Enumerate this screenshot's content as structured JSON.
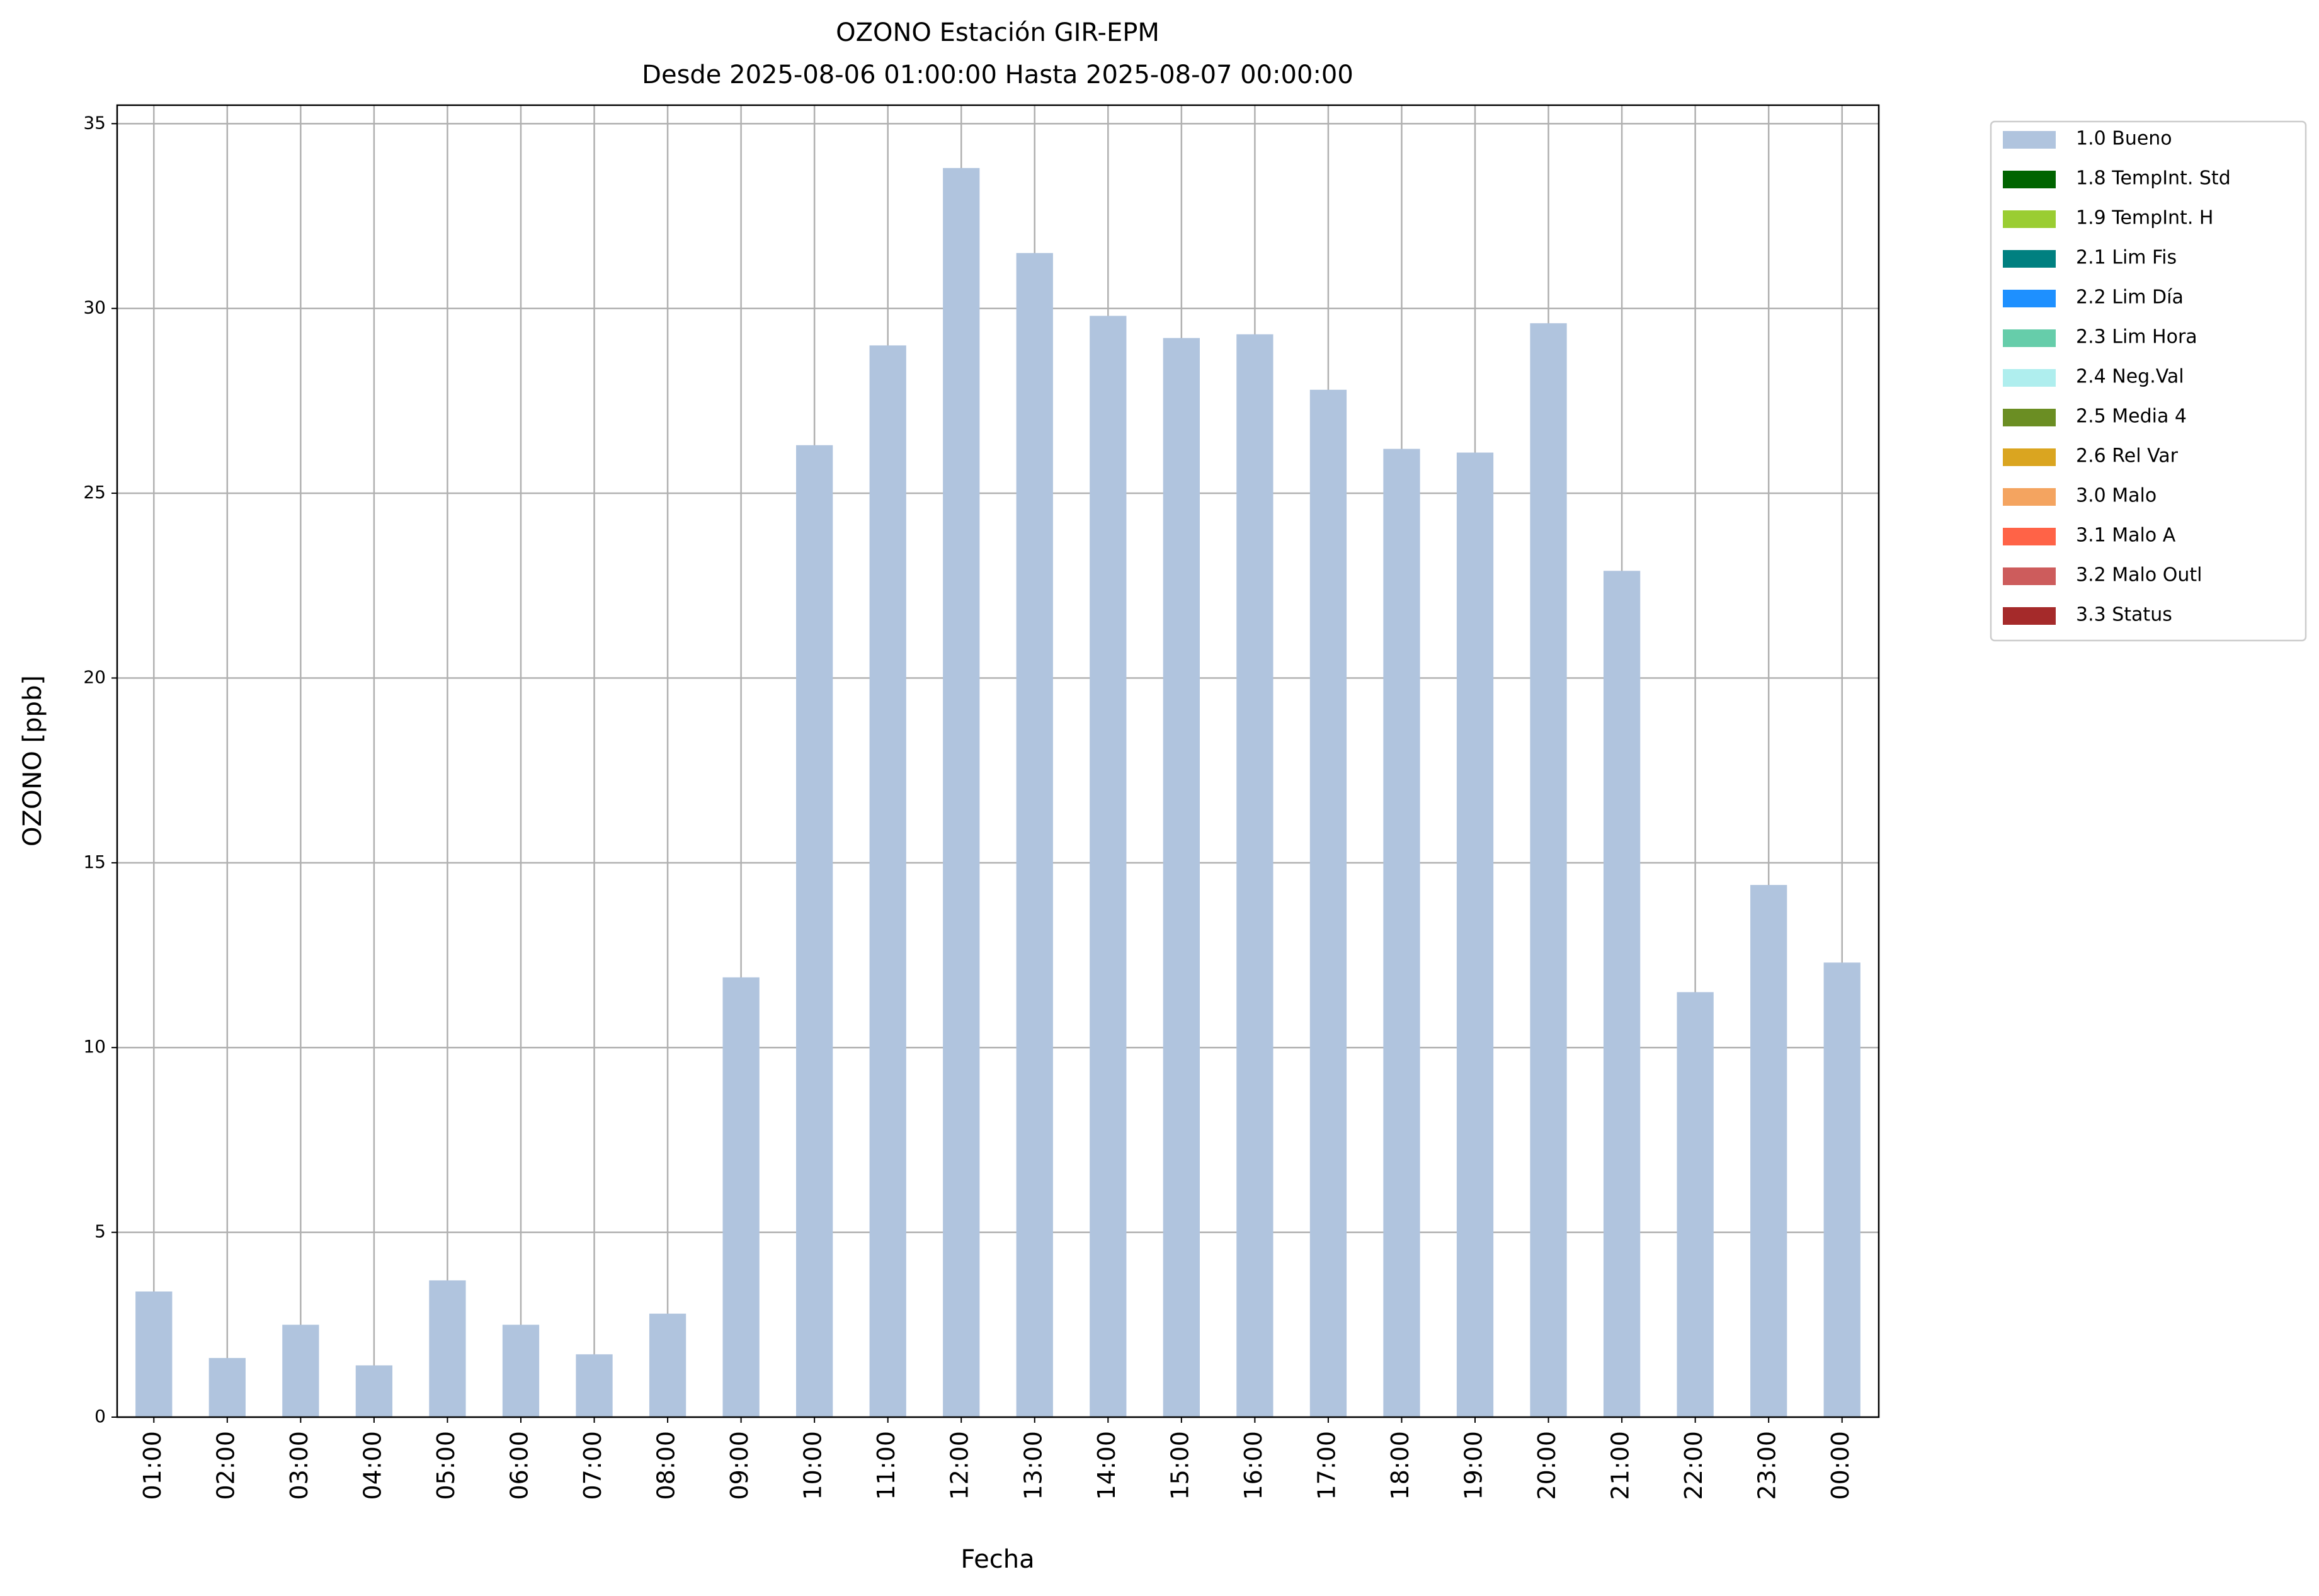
{
  "chart_data": {
    "type": "bar",
    "title": "OZONO Estación GIR-EPM",
    "subtitle": "Desde 2025-08-06 01:00:00 Hasta 2025-08-07 00:00:00",
    "x_label": "Fecha",
    "y_label": "OZONO [ppb]",
    "categories": [
      "01:00",
      "02:00",
      "03:00",
      "04:00",
      "05:00",
      "06:00",
      "07:00",
      "08:00",
      "09:00",
      "10:00",
      "11:00",
      "12:00",
      "13:00",
      "14:00",
      "15:00",
      "16:00",
      "17:00",
      "18:00",
      "19:00",
      "20:00",
      "21:00",
      "22:00",
      "23:00",
      "00:00"
    ],
    "series": [
      {
        "name": "1.0 Bueno",
        "color": "#b0c4de",
        "values": [
          3.4,
          1.6,
          2.5,
          1.4,
          3.7,
          2.5,
          1.7,
          2.8,
          11.9,
          26.3,
          29.0,
          33.8,
          31.5,
          29.8,
          29.2,
          29.3,
          27.8,
          26.2,
          26.1,
          29.6,
          22.9,
          11.5,
          14.4,
          12.3
        ]
      }
    ],
    "legend_entries": [
      {
        "name": "1.0 Bueno",
        "color": "#b0c4de"
      },
      {
        "name": "1.8 TempInt. Std",
        "color": "#006400"
      },
      {
        "name": "1.9 TempInt. H",
        "color": "#9acd32"
      },
      {
        "name": "2.1 Lim Fis",
        "color": "#008080"
      },
      {
        "name": "2.2 Lim Día",
        "color": "#1e90ff"
      },
      {
        "name": "2.3 Lim Hora",
        "color": "#66cdaa"
      },
      {
        "name": "2.4 Neg.Val",
        "color": "#afeeee"
      },
      {
        "name": "2.5 Media 4",
        "color": "#6b8e23"
      },
      {
        "name": "2.6 Rel Var",
        "color": "#daa520"
      },
      {
        "name": "3.0 Malo",
        "color": "#f4a460"
      },
      {
        "name": "3.1 Malo A",
        "color": "#ff6347"
      },
      {
        "name": "3.2 Malo Outl",
        "color": "#cd5c5c"
      },
      {
        "name": "3.3 Status",
        "color": "#a52a2a"
      }
    ],
    "ylim": [
      0,
      35.5
    ],
    "yticks": [
      0,
      5,
      10,
      15,
      20,
      25,
      30,
      35
    ],
    "grid": true,
    "legend_position": "outside-upper-right"
  }
}
